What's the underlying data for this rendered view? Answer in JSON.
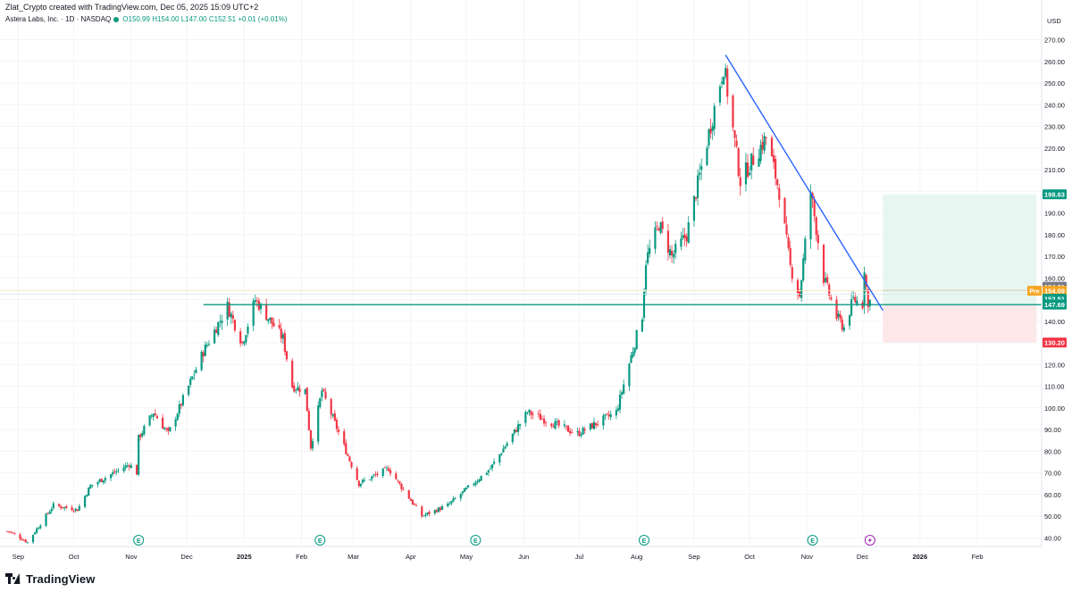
{
  "header": {
    "created_by": "Zlat_Crypto created with TradingView.com, Dec 05, 2025 15:09 UTC+2"
  },
  "symbol_info": {
    "name": "Astera Labs, Inc. · 1D · NASDAQ",
    "open": "O150.99",
    "high": "H154.00",
    "low": "L147.00",
    "close": "C152.51",
    "change": "+0.01 (+0.01%)"
  },
  "branding": {
    "logo_text": "TradingView"
  },
  "colors": {
    "up": "#089981",
    "down": "#f23645",
    "trendline": "#2962ff",
    "support": "#089981",
    "target_zone": "#e8f6f2",
    "stop_zone": "#fde8e9"
  },
  "chart_data": {
    "type": "candlestick",
    "currency": "USD",
    "y_range": [
      36,
      276
    ],
    "y_ticks": [
      "40.00",
      "50.00",
      "60.00",
      "70.00",
      "80.00",
      "90.00",
      "100.00",
      "110.00",
      "120.00",
      "130.00",
      "140.00",
      "150.00",
      "160.00",
      "170.00",
      "180.00",
      "190.00",
      "200.00",
      "210.00",
      "220.00",
      "230.00",
      "240.00",
      "250.00",
      "260.00",
      "270.00"
    ],
    "x_ticks": [
      "Sep",
      "Oct",
      "Nov",
      "Dec",
      "2025",
      "Feb",
      "Mar",
      "Apr",
      "May",
      "Jun",
      "Jul",
      "Aug",
      "Sep",
      "Oct",
      "Nov",
      "Dec",
      "2026",
      "Feb"
    ],
    "price_labels": [
      {
        "text": "198.63",
        "value": 198.63,
        "kind": "target"
      },
      {
        "text": "154.31",
        "value": 154.31,
        "kind": "high"
      },
      {
        "text": "154.09",
        "value": 154.09,
        "kind": "pre",
        "prefix": "Pre"
      },
      {
        "text": "152.51",
        "value": 152.51,
        "kind": "last"
      },
      {
        "text": "147.69",
        "value": 147.69,
        "kind": "support"
      },
      {
        "text": "130.20",
        "value": 130.2,
        "kind": "stop"
      }
    ],
    "support_level": 147.69,
    "trendline": [
      {
        "date": "2025-09-18",
        "value": 263
      },
      {
        "date": "2025-12-12",
        "value": 145
      }
    ],
    "position": {
      "entry": 147.69,
      "target": 198.63,
      "stop": 130.2,
      "start": "2025-12-12",
      "end": "2026-03-05"
    },
    "earnings_markers": [
      "2024-11-05",
      "2025-02-11",
      "2025-05-06",
      "2025-08-05",
      "2025-11-04"
    ],
    "earnings_marker_label": "E",
    "event_markers": [
      "2025-12-05"
    ],
    "pivots": [
      {
        "date": "2024-08-27",
        "value": 43
      },
      {
        "date": "2024-09-06",
        "value": 38
      },
      {
        "date": "2024-09-20",
        "value": 55
      },
      {
        "date": "2024-10-03",
        "value": 53
      },
      {
        "date": "2024-10-10",
        "value": 64
      },
      {
        "date": "2024-10-31",
        "value": 74
      },
      {
        "date": "2024-11-04",
        "value": 70
      },
      {
        "date": "2024-11-05",
        "value": 86
      },
      {
        "date": "2024-11-13",
        "value": 98
      },
      {
        "date": "2024-11-21",
        "value": 88
      },
      {
        "date": "2024-12-10",
        "value": 126
      },
      {
        "date": "2024-12-23",
        "value": 147
      },
      {
        "date": "2024-12-31",
        "value": 130
      },
      {
        "date": "2025-01-07",
        "value": 150
      },
      {
        "date": "2025-01-22",
        "value": 132
      },
      {
        "date": "2025-01-27",
        "value": 110
      },
      {
        "date": "2025-02-03",
        "value": 108
      },
      {
        "date": "2025-02-06",
        "value": 82
      },
      {
        "date": "2025-02-12",
        "value": 108
      },
      {
        "date": "2025-03-04",
        "value": 65
      },
      {
        "date": "2025-03-20",
        "value": 72
      },
      {
        "date": "2025-04-07",
        "value": 50
      },
      {
        "date": "2025-04-21",
        "value": 55
      },
      {
        "date": "2025-05-14",
        "value": 72
      },
      {
        "date": "2025-06-03",
        "value": 98
      },
      {
        "date": "2025-06-30",
        "value": 88
      },
      {
        "date": "2025-07-21",
        "value": 98
      },
      {
        "date": "2025-08-04",
        "value": 143
      },
      {
        "date": "2025-08-06",
        "value": 168
      },
      {
        "date": "2025-08-13",
        "value": 185
      },
      {
        "date": "2025-08-20",
        "value": 170
      },
      {
        "date": "2025-08-28",
        "value": 180
      },
      {
        "date": "2025-09-17",
        "value": 258
      },
      {
        "date": "2025-09-26",
        "value": 205
      },
      {
        "date": "2025-10-10",
        "value": 225
      },
      {
        "date": "2025-10-17",
        "value": 200
      },
      {
        "date": "2025-10-23",
        "value": 165
      },
      {
        "date": "2025-10-28",
        "value": 152
      },
      {
        "date": "2025-11-03",
        "value": 200
      },
      {
        "date": "2025-11-10",
        "value": 160
      },
      {
        "date": "2025-11-17",
        "value": 142
      },
      {
        "date": "2025-11-21",
        "value": 137
      },
      {
        "date": "2025-11-26",
        "value": 150
      },
      {
        "date": "2025-12-01",
        "value": 148
      },
      {
        "date": "2025-12-02",
        "value": 165
      },
      {
        "date": "2025-12-04",
        "value": 146
      },
      {
        "date": "2025-12-05",
        "value": 152.5
      }
    ]
  }
}
